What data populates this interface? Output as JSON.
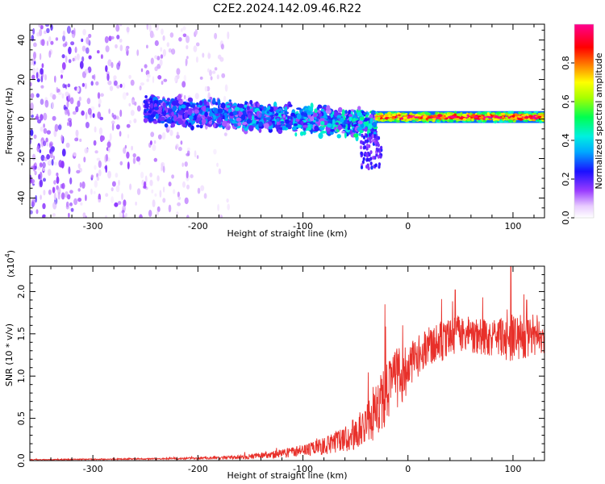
{
  "title": "C2E2.2024.142.09.46.R22",
  "chart_data": [
    {
      "type": "heatmap",
      "xlabel": "Height of straight line (km)",
      "ylabel": "Frequency (Hz)",
      "xlim": [
        -360,
        130
      ],
      "ylim": [
        -50,
        48
      ],
      "xticks": [
        -300,
        -200,
        -100,
        0,
        100
      ],
      "yticks": [
        -40,
        -20,
        0,
        20,
        40
      ],
      "colorbar": {
        "label": "Normalized spectral amplitude",
        "range": [
          0,
          1
        ],
        "ticks": [
          0.0,
          0.2,
          0.4,
          0.6,
          0.8
        ],
        "tick_labels": [
          "0.0",
          "0.2",
          "0.4",
          "0.6",
          "0.8"
        ],
        "colormap": "white-purple-blue-cyan-green-yellow-red-magenta"
      },
      "description_regions": [
        {
          "x_range": [
            -360,
            -170
          ],
          "freq_range": [
            -50,
            48
          ],
          "amplitude": [
            0.02,
            0.15
          ]
        },
        {
          "x_range": [
            -250,
            -30
          ],
          "freq_center": [
            5,
            -3
          ],
          "freq_halfwidth": 8,
          "amplitude": [
            0.1,
            0.45
          ]
        },
        {
          "x_range": [
            -30,
            130
          ],
          "freq_center": 1,
          "freq_halfwidth": 3,
          "amplitude": [
            0.5,
            0.98
          ]
        }
      ]
    },
    {
      "type": "line",
      "xlabel": "Height of straight line (km)",
      "ylabel": "SNR (10 * v/v)",
      "y_multiplier_label": "(x10",
      "y_multiplier_exp": "4",
      "y_multiplier_close": ")",
      "xlim": [
        -360,
        130
      ],
      "ylim": [
        0,
        2.3
      ],
      "xticks": [
        -300,
        -200,
        -100,
        0,
        100
      ],
      "yticks": [
        0.0,
        0.5,
        1.0,
        1.5,
        2.0
      ],
      "ytick_labels": [
        "0.0",
        "0.5",
        "1.0",
        "1.5",
        "2.0"
      ],
      "series": [
        {
          "color": "#e8302a",
          "envelope": [
            {
              "x": -360,
              "mean": 0.01,
              "noise": 0.005
            },
            {
              "x": -250,
              "mean": 0.02,
              "noise": 0.008
            },
            {
              "x": -180,
              "mean": 0.03,
              "noise": 0.015
            },
            {
              "x": -150,
              "mean": 0.05,
              "noise": 0.03
            },
            {
              "x": -120,
              "mean": 0.08,
              "noise": 0.05
            },
            {
              "x": -100,
              "mean": 0.12,
              "noise": 0.07
            },
            {
              "x": -80,
              "mean": 0.17,
              "noise": 0.1
            },
            {
              "x": -60,
              "mean": 0.25,
              "noise": 0.15
            },
            {
              "x": -40,
              "mean": 0.4,
              "noise": 0.25
            },
            {
              "x": -25,
              "mean": 0.7,
              "noise": 0.35
            },
            {
              "x": -10,
              "mean": 0.95,
              "noise": 0.4
            },
            {
              "x": 0,
              "mean": 1.1,
              "noise": 0.3
            },
            {
              "x": 20,
              "mean": 1.35,
              "noise": 0.25
            },
            {
              "x": 50,
              "mean": 1.5,
              "noise": 0.22
            },
            {
              "x": 80,
              "mean": 1.45,
              "noise": 0.22
            },
            {
              "x": 100,
              "mean": 1.45,
              "noise": 0.28
            },
            {
              "x": 130,
              "mean": 1.45,
              "noise": 0.18
            }
          ],
          "peaks": [
            {
              "x": -22,
              "y": 1.85
            },
            {
              "x": -5,
              "y": 1.6
            },
            {
              "x": 45,
              "y": 2.02
            },
            {
              "x": 98,
              "y": 2.3
            },
            {
              "x": 113,
              "y": 1.9
            }
          ]
        }
      ]
    }
  ]
}
